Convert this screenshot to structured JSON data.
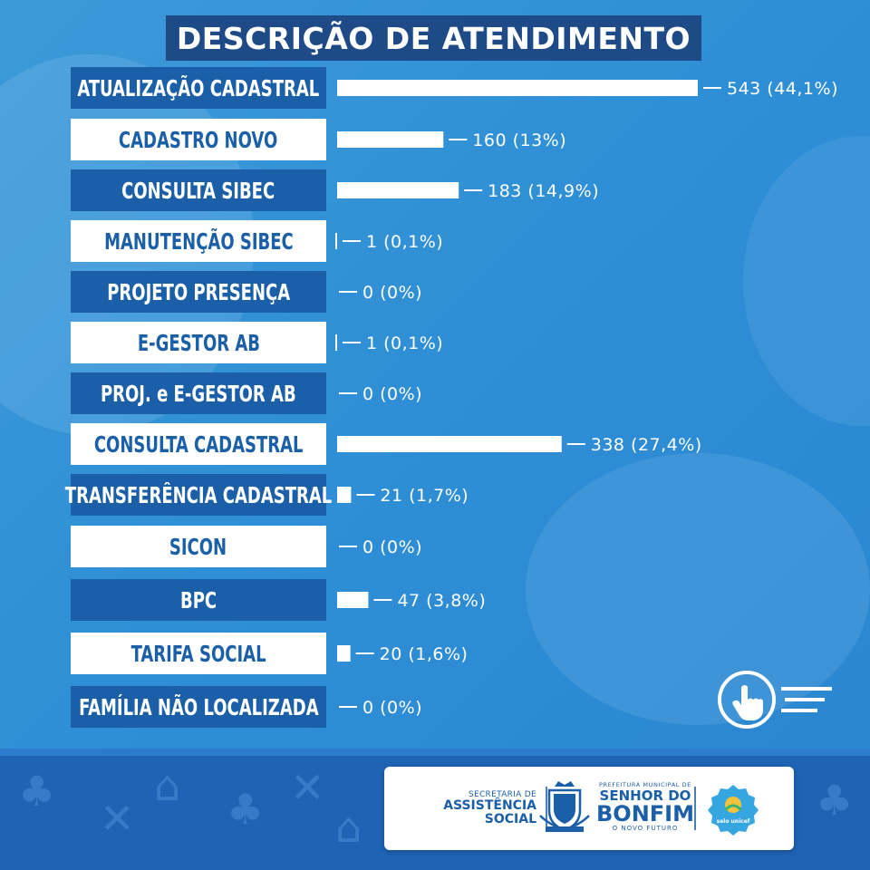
{
  "title": "DESCRIÇÃO DE ATENDIMENTO",
  "chart_data": {
    "type": "bar",
    "orientation": "horizontal",
    "title": "DESCRIÇÃO DE ATENDIMENTO",
    "categories": [
      "ATUALIZAÇÃO CADASTRAL",
      "CADASTRO NOVO",
      "CONSULTA SIBEC",
      "MANUTENÇÃO SIBEC",
      "PROJETO PRESENÇA",
      "E-GESTOR AB",
      "PROJ. e E-GESTOR AB",
      "CONSULTA CADASTRAL",
      "TRANSFERÊNCIA CADASTRAL",
      "SICON",
      "BPC",
      "TARIFA SOCIAL",
      "FAMÍLIA NÃO LOCALIZADA"
    ],
    "values": [
      543,
      160,
      183,
      1,
      0,
      1,
      0,
      338,
      21,
      0,
      47,
      20,
      0
    ],
    "data_labels": [
      "543 (44,1%)",
      "160 (13%)",
      "183 (14,9%)",
      "1 (0,1%)",
      "0 (0%)",
      "1 (0,1%)",
      "0 (0%)",
      "338 (27,4%)",
      "21 (1,7%)",
      "0 (0%)",
      "47 (3,8%)",
      "20 (1,6%)",
      "0 (0%)"
    ],
    "xlim": [
      0,
      543
    ],
    "grid": false,
    "legend": "none"
  },
  "footer": {
    "secretaria_line1": "SECRETARIA DE",
    "secretaria_line2": "ASSISTÊNCIA",
    "secretaria_line3": "SOCIAL",
    "prefeitura_line1": "PREFEITURA MUNICIPAL DE",
    "prefeitura_line2": "SENHOR DO",
    "prefeitura_line3": "BONFIM",
    "prefeitura_line4": "O NOVO FUTURO",
    "selo_text": "selo unicef"
  },
  "icons": {
    "pointer": "hand-pointer-icon",
    "crest": "municipal-crest-icon",
    "selo": "selo-unicef-logo-icon"
  },
  "colors": {
    "background": "#2f8fd6",
    "title_box": "#1e4a87",
    "label_dark": "#1b5fa8",
    "label_light": "#ffffff",
    "bar": "#ffffff",
    "footer": "#1f63b5"
  }
}
